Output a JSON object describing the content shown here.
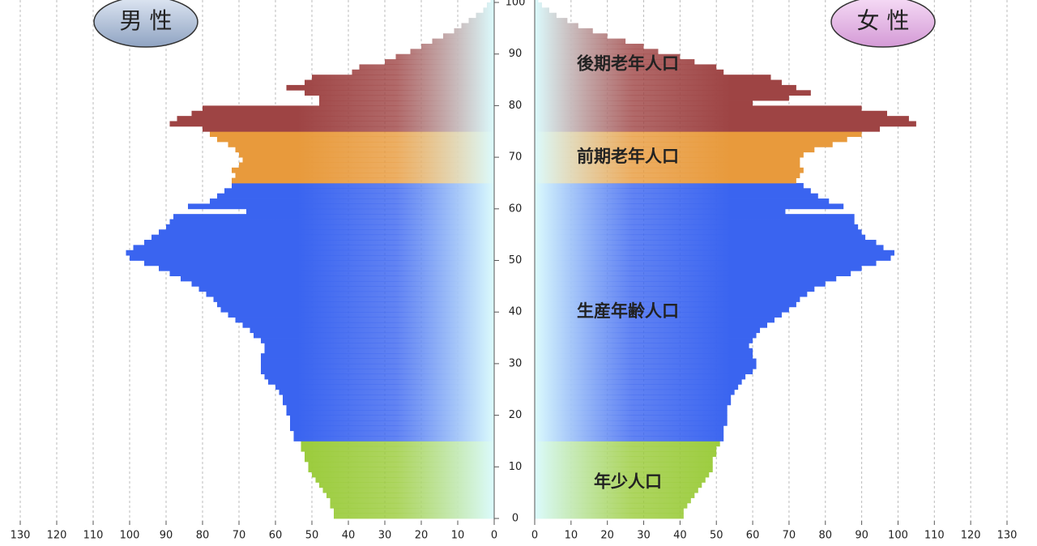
{
  "chart_data": {
    "type": "population-pyramid",
    "ages": [
      0,
      1,
      2,
      3,
      4,
      5,
      6,
      7,
      8,
      9,
      10,
      11,
      12,
      13,
      14,
      15,
      16,
      17,
      18,
      19,
      20,
      21,
      22,
      23,
      24,
      25,
      26,
      27,
      28,
      29,
      30,
      31,
      32,
      33,
      34,
      35,
      36,
      37,
      38,
      39,
      40,
      41,
      42,
      43,
      44,
      45,
      46,
      47,
      48,
      49,
      50,
      51,
      52,
      53,
      54,
      55,
      56,
      57,
      58,
      59,
      60,
      61,
      62,
      63,
      64,
      65,
      66,
      67,
      68,
      69,
      70,
      71,
      72,
      73,
      74,
      75,
      76,
      77,
      78,
      79,
      80,
      81,
      82,
      83,
      84,
      85,
      86,
      87,
      88,
      89,
      90,
      91,
      92,
      93,
      94,
      95,
      96,
      97,
      98,
      99,
      100
    ],
    "series": [
      {
        "name": "男 性",
        "side": "left",
        "values": [
          44,
          44,
          45,
          45,
          46,
          47,
          48,
          49,
          50,
          51,
          51,
          52,
          52,
          53,
          53,
          55,
          55,
          56,
          56,
          56,
          57,
          57,
          58,
          58,
          59,
          60,
          62,
          63,
          64,
          64,
          64,
          64,
          63,
          63,
          64,
          66,
          67,
          69,
          71,
          73,
          75,
          76,
          77,
          79,
          81,
          83,
          86,
          89,
          92,
          96,
          100,
          101,
          99,
          96,
          94,
          92,
          90,
          89,
          88,
          68,
          84,
          78,
          76,
          74,
          72,
          72,
          71,
          72,
          70,
          69,
          70,
          71,
          73,
          76,
          78,
          80,
          89,
          87,
          83,
          80,
          48,
          48,
          52,
          57,
          52,
          50,
          39,
          37,
          30,
          27,
          23,
          20,
          17,
          14,
          11,
          9,
          7,
          5,
          3,
          2,
          1
        ]
      },
      {
        "name": "女 性",
        "side": "right",
        "values": [
          41,
          41,
          42,
          43,
          44,
          45,
          46,
          47,
          48,
          49,
          49,
          49,
          50,
          50,
          51,
          52,
          52,
          52,
          53,
          53,
          53,
          53,
          54,
          54,
          55,
          56,
          57,
          58,
          60,
          61,
          61,
          60,
          60,
          59,
          60,
          61,
          62,
          64,
          66,
          68,
          70,
          72,
          73,
          75,
          77,
          80,
          83,
          87,
          90,
          94,
          98,
          99,
          96,
          94,
          91,
          90,
          89,
          88,
          88,
          69,
          85,
          81,
          78,
          76,
          74,
          72,
          73,
          74,
          73,
          73,
          74,
          77,
          82,
          86,
          90,
          95,
          105,
          103,
          97,
          90,
          60,
          70,
          76,
          72,
          68,
          65,
          52,
          50,
          44,
          40,
          34,
          30,
          25,
          20,
          16,
          12,
          9,
          6,
          4,
          2,
          1
        ]
      }
    ],
    "groups": [
      {
        "name": "年少人口",
        "from": 0,
        "to": 14,
        "color": "#9acb3a"
      },
      {
        "name": "生産年齢人口",
        "from": 15,
        "to": 64,
        "color": "#3a64f0"
      },
      {
        "name": "前期老年人口",
        "from": 65,
        "to": 74,
        "color": "#e89a3c"
      },
      {
        "name": "後期老年人口",
        "from": 75,
        "to": 100,
        "color": "#9e4444"
      }
    ],
    "xlim": [
      0,
      130
    ],
    "xticks": [
      0,
      10,
      20,
      30,
      40,
      50,
      60,
      70,
      80,
      90,
      100,
      110,
      120,
      130
    ],
    "ylim": [
      0,
      100
    ],
    "yticks": [
      0,
      10,
      20,
      30,
      40,
      50,
      60,
      70,
      80,
      90,
      100
    ],
    "grid": true
  }
}
